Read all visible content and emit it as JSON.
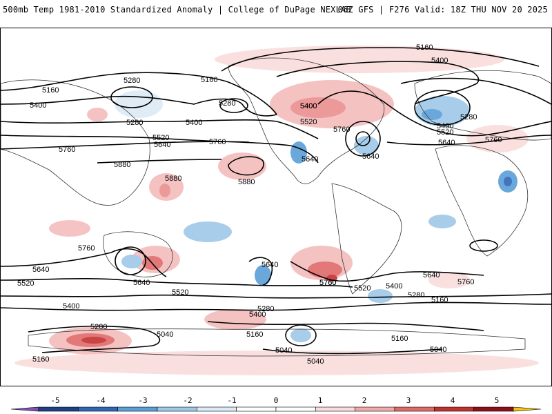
{
  "header": {
    "title": "500mb Temp 1981-2010 Standardized Anomaly | College of DuPage NEXLAB",
    "run_info": "06Z GFS | F276 Valid: 18Z THU NOV 20 2025"
  },
  "contour_labels": [
    {
      "id": "c5160-top",
      "text": "5160"
    },
    {
      "id": "c5400-top",
      "text": "5400"
    },
    {
      "id": "c5280-np",
      "text": "5280"
    },
    {
      "id": "c5160-np",
      "text": "5160"
    },
    {
      "id": "c5160-left",
      "text": "5160"
    },
    {
      "id": "c5400-left",
      "text": "5400"
    },
    {
      "id": "c5280-pac",
      "text": "5280"
    },
    {
      "id": "c5280-aleut",
      "text": "5280"
    },
    {
      "id": "c5400-pac",
      "text": "5400"
    },
    {
      "id": "c5520-pac",
      "text": "5520"
    },
    {
      "id": "c5640-pac",
      "text": "5640"
    },
    {
      "id": "c5760-pac",
      "text": "5760"
    },
    {
      "id": "c5760-left",
      "text": "5760"
    },
    {
      "id": "c5880-asia",
      "text": "5880"
    },
    {
      "id": "c5880-ind",
      "text": "5880"
    },
    {
      "id": "c5880-pac",
      "text": "5880"
    },
    {
      "id": "c5400-na",
      "text": "5400"
    },
    {
      "id": "c5520-na",
      "text": "5520"
    },
    {
      "id": "c5640-na",
      "text": "5640"
    },
    {
      "id": "c5760-na",
      "text": "5760"
    },
    {
      "id": "c5640-atl",
      "text": "5640"
    },
    {
      "id": "c5280-eu",
      "text": "5280"
    },
    {
      "id": "c5400-eu",
      "text": "5400"
    },
    {
      "id": "c5520-eu",
      "text": "5520"
    },
    {
      "id": "c5640-eu",
      "text": "5640"
    },
    {
      "id": "c5760-eu",
      "text": "5760"
    },
    {
      "id": "c5400-eu2",
      "text": "5400"
    },
    {
      "id": "c5760-aus",
      "text": "5760"
    },
    {
      "id": "c5640-sw",
      "text": "5640"
    },
    {
      "id": "c5520-sw",
      "text": "5520"
    },
    {
      "id": "c5640-aus",
      "text": "5640"
    },
    {
      "id": "c5760-spac",
      "text": "5760"
    },
    {
      "id": "c5640-spac",
      "text": "5640"
    },
    {
      "id": "c5520-spac",
      "text": "5520"
    },
    {
      "id": "c5400-sw",
      "text": "5400"
    },
    {
      "id": "c5280-sw",
      "text": "5280"
    },
    {
      "id": "c5400-so",
      "text": "5400"
    },
    {
      "id": "c5280-so",
      "text": "5280"
    },
    {
      "id": "c5160-so",
      "text": "5160"
    },
    {
      "id": "c5040-so",
      "text": "5040"
    },
    {
      "id": "c5160-bl",
      "text": "5160"
    },
    {
      "id": "c5760-sam",
      "text": "5760"
    },
    {
      "id": "c5520-sam",
      "text": "5520"
    },
    {
      "id": "c5400-sam",
      "text": "5400"
    },
    {
      "id": "c5280-satl",
      "text": "5280"
    },
    {
      "id": "c5160-satl",
      "text": "5160"
    },
    {
      "id": "c5640-satl",
      "text": "5640"
    },
    {
      "id": "c5760-satl",
      "text": "5760"
    },
    {
      "id": "c5160-sant",
      "text": "5160"
    },
    {
      "id": "c5040-ant",
      "text": "5040"
    },
    {
      "id": "c5040-ant2",
      "text": "5040"
    },
    {
      "id": "c5040-ant3",
      "text": "5040"
    }
  ],
  "colorbar": {
    "ticks": [
      "-5",
      "-4",
      "-3",
      "-2",
      "-1",
      "0",
      "1",
      "2",
      "3",
      "4",
      "5"
    ],
    "colors": [
      "#7f52b0",
      "#1f3f86",
      "#2e67b7",
      "#5a9fd8",
      "#9ec8e8",
      "#dceaf6",
      "#ffffff",
      "#ffffff",
      "#fadcdc",
      "#f2a9a9",
      "#e06a6a",
      "#c43030",
      "#8e0f17",
      "#f3c316"
    ]
  }
}
